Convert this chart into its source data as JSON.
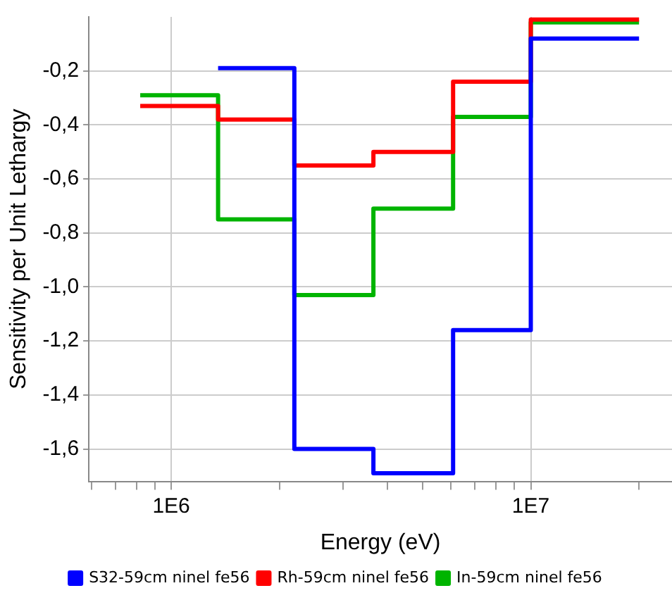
{
  "chart_data": {
    "type": "step",
    "xlabel": "Energy (eV)",
    "ylabel": "Sensitivity per Unit Lethargy",
    "log": "x",
    "x": [
      820000,
      1350000,
      2200000,
      3650000,
      6080000,
      10000000,
      20000000
    ],
    "series": [
      {
        "name": "S32-59cm ninel fe56",
        "color": "#0000ff",
        "x": [
          1350000,
          2200000,
          3650000,
          6080000,
          10000000,
          20000000
        ],
        "values": [
          -0.19,
          -1.6,
          -1.69,
          -1.16,
          -0.08,
          -0.08
        ]
      },
      {
        "name": "Rh-59cm ninel fe56",
        "color": "#ff0000",
        "values": [
          -0.33,
          -0.38,
          -0.55,
          -0.5,
          -0.24,
          -0.01,
          -0.01
        ]
      },
      {
        "name": "In-59cm ninel fe56",
        "color": "#00b400",
        "values": [
          -0.29,
          -0.75,
          -1.03,
          -0.71,
          -0.37,
          -0.02,
          -0.02
        ]
      }
    ],
    "xlim": [
      590000,
      24700000
    ],
    "xticks": [
      {
        "value": 600000,
        "label": null
      },
      {
        "value": 700000,
        "label": null
      },
      {
        "value": 800000,
        "label": null
      },
      {
        "value": 900000,
        "label": null
      },
      {
        "value": 1000000,
        "label": "1E6"
      },
      {
        "value": 2000000,
        "label": null
      },
      {
        "value": 3000000,
        "label": null
      },
      {
        "value": 4000000,
        "label": null
      },
      {
        "value": 5000000,
        "label": null
      },
      {
        "value": 6000000,
        "label": null
      },
      {
        "value": 7000000,
        "label": null
      },
      {
        "value": 8000000,
        "label": null
      },
      {
        "value": 9000000,
        "label": null
      },
      {
        "value": 10000000,
        "label": "1E7"
      },
      {
        "value": 20000000,
        "label": null
      }
    ],
    "ylim": [
      -1.72,
      0
    ],
    "yticks": [
      {
        "value": -0.2,
        "label": "-0,2"
      },
      {
        "value": -0.4,
        "label": "-0,4"
      },
      {
        "value": -0.6,
        "label": "-0,6"
      },
      {
        "value": -0.8,
        "label": "-0,8"
      },
      {
        "value": -1.0,
        "label": "-1,0"
      },
      {
        "value": -1.2,
        "label": "-1,2"
      },
      {
        "value": -1.4,
        "label": "-1,4"
      },
      {
        "value": -1.6,
        "label": "-1,6"
      }
    ],
    "grid": true,
    "legend": "bottom",
    "line_style": "solid",
    "marker": "none"
  }
}
